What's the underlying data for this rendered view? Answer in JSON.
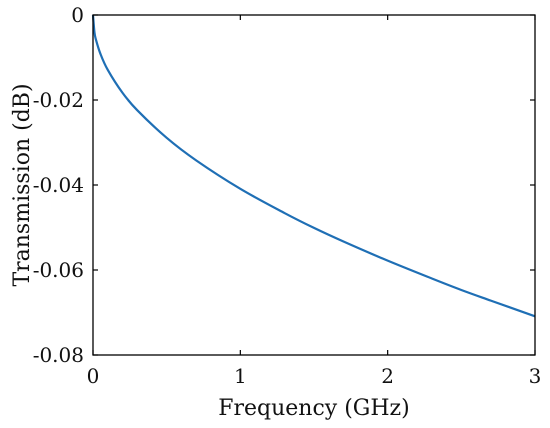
{
  "chart_data": {
    "type": "line",
    "xlabel": "Frequency (GHz)",
    "ylabel": "Transmission (dB)",
    "xlim": [
      0,
      3
    ],
    "ylim": [
      -0.08,
      0
    ],
    "x_ticks": [
      0,
      1,
      2,
      3
    ],
    "x_tick_labels": [
      "0",
      "1",
      "2",
      "3"
    ],
    "y_ticks": [
      0,
      -0.02,
      -0.04,
      -0.06,
      -0.08
    ],
    "y_tick_labels": [
      "0",
      "-0.02",
      "-0.04",
      "-0.06",
      "-0.08"
    ],
    "grid": false,
    "legend": "none",
    "series": [
      {
        "color": "#1f6fb5",
        "x": [
          0,
          0.01,
          0.02,
          0.05,
          0.1,
          0.2,
          0.3,
          0.5,
          0.7,
          1.0,
          1.3,
          1.5,
          1.7,
          2.0,
          2.3,
          2.5,
          2.7,
          3.0
        ],
        "y": [
          0,
          -0.0041,
          -0.0058,
          -0.0091,
          -0.0129,
          -0.0183,
          -0.0224,
          -0.0289,
          -0.0342,
          -0.0409,
          -0.0466,
          -0.0501,
          -0.0533,
          -0.0578,
          -0.062,
          -0.0647,
          -0.0672,
          -0.0709
        ]
      }
    ]
  }
}
